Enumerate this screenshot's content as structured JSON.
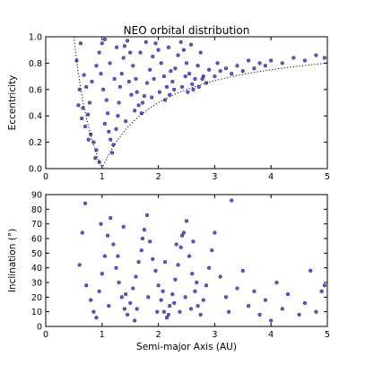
{
  "chart_data": [
    {
      "type": "scatter",
      "title": "NEO orbital distribution",
      "xlabel": "",
      "ylabel": "Eccentricity",
      "xlim": [
        0,
        5
      ],
      "ylim": [
        0.0,
        1.0
      ],
      "x_ticks": [
        "0",
        "1",
        "2",
        "3",
        "4",
        "5"
      ],
      "y_ticks": [
        "0.0",
        "0.2",
        "0.4",
        "0.6",
        "0.8",
        "1.0"
      ],
      "grid": false,
      "marker_color": "#2323c8",
      "reference_curves": [
        {
          "style": "dotted",
          "rule": "q = a(1-e) = 1.0 AU",
          "x_range": [
            0.5,
            5.0
          ]
        },
        {
          "style": "dotted",
          "rule": "Q = a(1+e) = 1.0 AU",
          "x_range": [
            0.5,
            1.0
          ]
        }
      ],
      "series": [
        {
          "points": [
            [
              0.62,
              0.95
            ],
            [
              0.55,
              0.82
            ],
            [
              0.68,
              0.71
            ],
            [
              0.72,
              0.62
            ],
            [
              0.58,
              0.48
            ],
            [
              0.66,
              0.46
            ],
            [
              0.75,
              0.41
            ],
            [
              0.7,
              0.32
            ],
            [
              0.8,
              0.26
            ],
            [
              0.85,
              0.2
            ],
            [
              0.9,
              0.14
            ],
            [
              0.88,
              0.08
            ],
            [
              0.95,
              0.05
            ],
            [
              0.78,
              0.5
            ],
            [
              0.82,
              0.66
            ],
            [
              0.9,
              0.78
            ],
            [
              0.95,
              0.88
            ],
            [
              1.0,
              0.95
            ],
            [
              1.05,
              0.98
            ],
            [
              0.98,
              0.72
            ],
            [
              1.02,
              0.6
            ],
            [
              1.08,
              0.52
            ],
            [
              1.1,
              0.42
            ],
            [
              1.05,
              0.34
            ],
            [
              1.12,
              0.28
            ],
            [
              1.15,
              0.22
            ],
            [
              1.18,
              0.12
            ],
            [
              1.2,
              0.18
            ],
            [
              1.25,
              0.3
            ],
            [
              1.28,
              0.4
            ],
            [
              1.3,
              0.5
            ],
            [
              1.32,
              0.62
            ],
            [
              1.35,
              0.72
            ],
            [
              1.38,
              0.84
            ],
            [
              1.4,
              0.93
            ],
            [
              1.45,
              0.97
            ],
            [
              1.5,
              0.88
            ],
            [
              1.55,
              0.78
            ],
            [
              1.6,
              0.68
            ],
            [
              1.62,
              0.58
            ],
            [
              1.65,
              0.48
            ],
            [
              1.7,
              0.42
            ],
            [
              1.75,
              0.55
            ],
            [
              1.8,
              0.65
            ],
            [
              1.85,
              0.75
            ],
            [
              1.9,
              0.85
            ],
            [
              1.95,
              0.95
            ],
            [
              2.0,
              0.9
            ],
            [
              2.05,
              0.8
            ],
            [
              2.1,
              0.7
            ],
            [
              2.15,
              0.62
            ],
            [
              2.2,
              0.56
            ],
            [
              2.25,
              0.66
            ],
            [
              2.3,
              0.76
            ],
            [
              2.35,
              0.86
            ],
            [
              2.4,
              0.96
            ],
            [
              2.45,
              0.9
            ],
            [
              2.5,
              0.8
            ],
            [
              2.55,
              0.72
            ],
            [
              2.6,
              0.64
            ],
            [
              2.65,
              0.68
            ],
            [
              2.7,
              0.78
            ],
            [
              2.75,
              0.88
            ],
            [
              2.8,
              0.7
            ],
            [
              2.85,
              0.65
            ],
            [
              2.9,
              0.75
            ],
            [
              3.0,
              0.7
            ],
            [
              3.05,
              0.8
            ],
            [
              3.1,
              0.74
            ],
            [
              3.2,
              0.76
            ],
            [
              3.3,
              0.72
            ],
            [
              3.4,
              0.78
            ],
            [
              3.5,
              0.74
            ],
            [
              3.6,
              0.82
            ],
            [
              3.7,
              0.76
            ],
            [
              3.8,
              0.8
            ],
            [
              3.9,
              0.78
            ],
            [
              4.0,
              0.82
            ],
            [
              4.2,
              0.8
            ],
            [
              4.4,
              0.84
            ],
            [
              4.6,
              0.82
            ],
            [
              4.8,
              0.86
            ],
            [
              4.95,
              0.84
            ],
            [
              1.22,
              0.68
            ],
            [
              1.42,
              0.36
            ],
            [
              1.58,
              0.44
            ],
            [
              1.72,
              0.5
            ],
            [
              1.88,
              0.54
            ],
            [
              2.02,
              0.58
            ],
            [
              2.12,
              0.52
            ],
            [
              2.28,
              0.6
            ],
            [
              2.42,
              0.62
            ],
            [
              2.52,
              0.58
            ],
            [
              2.62,
              0.6
            ],
            [
              2.72,
              0.62
            ],
            [
              1.48,
              0.66
            ],
            [
              1.68,
              0.88
            ],
            [
              1.78,
              0.96
            ],
            [
              2.18,
              0.92
            ],
            [
              2.58,
              0.94
            ],
            [
              0.6,
              0.6
            ],
            [
              0.64,
              0.38
            ],
            [
              0.76,
              0.22
            ],
            [
              1.14,
              0.8
            ],
            [
              1.26,
              0.92
            ],
            [
              1.52,
              0.56
            ],
            [
              1.92,
              0.68
            ],
            [
              2.22,
              0.74
            ],
            [
              2.48,
              0.7
            ],
            [
              2.78,
              0.68
            ]
          ]
        }
      ]
    },
    {
      "type": "scatter",
      "title": "",
      "xlabel": "Semi-major Axis (AU)",
      "ylabel": "Inclination (°)",
      "xlim": [
        0,
        5
      ],
      "ylim": [
        0,
        90
      ],
      "x_ticks": [
        "0",
        "1",
        "2",
        "3",
        "4",
        "5"
      ],
      "y_ticks": [
        "0",
        "10",
        "20",
        "30",
        "40",
        "50",
        "60",
        "70",
        "80",
        "90"
      ],
      "grid": false,
      "marker_color": "#2323c8",
      "series": [
        {
          "points": [
            [
              0.7,
              84
            ],
            [
              0.65,
              64
            ],
            [
              0.6,
              42
            ],
            [
              0.72,
              28
            ],
            [
              0.8,
              18
            ],
            [
              0.85,
              10
            ],
            [
              0.9,
              6
            ],
            [
              0.95,
              24
            ],
            [
              1.0,
              36
            ],
            [
              1.05,
              48
            ],
            [
              1.1,
              62
            ],
            [
              1.15,
              74
            ],
            [
              1.2,
              56
            ],
            [
              1.25,
              40
            ],
            [
              1.3,
              30
            ],
            [
              1.35,
              20
            ],
            [
              1.4,
              12
            ],
            [
              1.45,
              8
            ],
            [
              1.5,
              16
            ],
            [
              1.55,
              26
            ],
            [
              1.6,
              34
            ],
            [
              1.65,
              44
            ],
            [
              1.7,
              52
            ],
            [
              1.75,
              66
            ],
            [
              1.8,
              76
            ],
            [
              1.85,
              58
            ],
            [
              1.9,
              46
            ],
            [
              1.95,
              38
            ],
            [
              2.0,
              28
            ],
            [
              2.05,
              18
            ],
            [
              2.1,
              10
            ],
            [
              2.15,
              6
            ],
            [
              2.2,
              14
            ],
            [
              2.25,
              22
            ],
            [
              2.3,
              32
            ],
            [
              2.35,
              42
            ],
            [
              2.4,
              54
            ],
            [
              2.45,
              64
            ],
            [
              2.5,
              72
            ],
            [
              2.55,
              48
            ],
            [
              2.6,
              36
            ],
            [
              2.65,
              24
            ],
            [
              2.7,
              14
            ],
            [
              2.75,
              8
            ],
            [
              2.8,
              18
            ],
            [
              2.85,
              28
            ],
            [
              2.9,
              40
            ],
            [
              2.95,
              52
            ],
            [
              3.0,
              64
            ],
            [
              3.1,
              34
            ],
            [
              3.2,
              20
            ],
            [
              3.25,
              10
            ],
            [
              3.3,
              86
            ],
            [
              3.4,
              26
            ],
            [
              3.5,
              38
            ],
            [
              3.6,
              14
            ],
            [
              3.7,
              24
            ],
            [
              3.8,
              8
            ],
            [
              3.9,
              18
            ],
            [
              4.0,
              4
            ],
            [
              4.1,
              30
            ],
            [
              4.2,
              12
            ],
            [
              4.3,
              22
            ],
            [
              4.5,
              8
            ],
            [
              4.6,
              16
            ],
            [
              4.7,
              38
            ],
            [
              4.8,
              10
            ],
            [
              4.9,
              24
            ],
            [
              4.95,
              28
            ],
            [
              1.28,
              48
            ],
            [
              1.42,
              22
            ],
            [
              1.62,
              12
            ],
            [
              1.82,
              20
            ],
            [
              1.98,
              10
            ],
            [
              2.08,
              24
            ],
            [
              2.18,
              8
            ],
            [
              2.28,
              16
            ],
            [
              2.38,
              10
            ],
            [
              2.48,
              20
            ],
            [
              2.58,
              12
            ],
            [
              2.68,
              30
            ],
            [
              1.12,
              14
            ],
            [
              0.98,
              70
            ],
            [
              1.38,
              68
            ],
            [
              1.72,
              60
            ],
            [
              2.12,
              44
            ],
            [
              2.32,
              56
            ],
            [
              2.42,
              62
            ],
            [
              2.62,
              58
            ],
            [
              1.58,
              4
            ]
          ]
        }
      ]
    }
  ]
}
